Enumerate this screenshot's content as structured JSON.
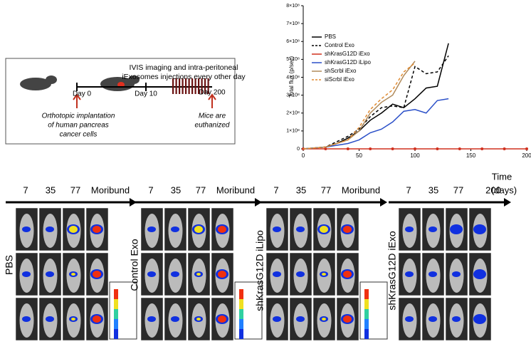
{
  "diagram": {
    "caption": [
      "IVIS imaging and intra-peritoneal",
      "iExosomes injections every other day"
    ],
    "days": [
      "Day 0",
      "Day 10",
      "Day 200"
    ],
    "note_left": [
      "Orthotopic implantation",
      "of human pancreas",
      "cancer cells"
    ],
    "note_right": [
      "Mice are",
      "euthanized"
    ]
  },
  "chart_data": {
    "type": "line",
    "y_label": "Total flux (p/sec)",
    "xlim": [
      0,
      200
    ],
    "xticks": [
      0,
      50,
      100,
      150,
      200
    ],
    "ylim": [
      0,
      800000000
    ],
    "yticks": [
      0,
      {
        "value": 100000000,
        "label": "1×10⁸"
      },
      {
        "value": 200000000,
        "label": "2×10⁸"
      },
      {
        "value": 300000000,
        "label": "3×10⁸"
      },
      {
        "value": 400000000,
        "label": "4×10⁸"
      },
      {
        "value": 500000000,
        "label": "5×10⁸"
      },
      {
        "value": 600000000,
        "label": "6×10⁸"
      },
      {
        "value": 700000000,
        "label": "7×10⁸"
      },
      {
        "value": 800000000,
        "label": "8×10⁸"
      }
    ],
    "series": [
      {
        "name": "PBS",
        "color": "#000000",
        "dashed": false,
        "x": [
          0,
          10,
          20,
          30,
          40,
          50,
          60,
          70,
          80,
          90,
          100,
          110,
          120,
          130
        ],
        "values": [
          0,
          5000000,
          10000000,
          30000000,
          60000000,
          100000000,
          160000000,
          200000000,
          250000000,
          230000000,
          280000000,
          340000000,
          350000000,
          590000000
        ]
      },
      {
        "name": "Control Exo",
        "color": "#000000",
        "dashed": true,
        "x": [
          0,
          10,
          20,
          30,
          40,
          50,
          60,
          70,
          80,
          90,
          100,
          110,
          120,
          130
        ],
        "values": [
          0,
          5000000,
          10000000,
          40000000,
          70000000,
          110000000,
          180000000,
          230000000,
          240000000,
          230000000,
          460000000,
          420000000,
          430000000,
          520000000
        ]
      },
      {
        "name": "shKrasG12D iExo",
        "color": "#d0301e",
        "dashed": false,
        "marker": true,
        "x": [
          0,
          20,
          40,
          60,
          80,
          100,
          120,
          140,
          160,
          180,
          200
        ],
        "values": [
          0,
          0,
          0,
          0,
          0,
          0,
          0,
          0,
          0,
          0,
          0
        ]
      },
      {
        "name": "shKrasG12D iLipo",
        "color": "#2a4fc8",
        "dashed": false,
        "x": [
          0,
          20,
          40,
          50,
          60,
          70,
          80,
          90,
          100,
          110,
          120,
          130
        ],
        "values": [
          0,
          10000000,
          30000000,
          50000000,
          90000000,
          110000000,
          150000000,
          210000000,
          220000000,
          200000000,
          270000000,
          280000000
        ]
      },
      {
        "name": "shScrbl iExo",
        "color": "#b08a5a",
        "dashed": false,
        "x": [
          0,
          20,
          40,
          50,
          60,
          70,
          80,
          90,
          100
        ],
        "values": [
          0,
          10000000,
          50000000,
          100000000,
          200000000,
          260000000,
          300000000,
          410000000,
          490000000
        ]
      },
      {
        "name": "siScrbl iExo",
        "color": "#e08a30",
        "dashed": true,
        "x": [
          0,
          20,
          40,
          50,
          60,
          70,
          80,
          90,
          100
        ],
        "values": [
          0,
          10000000,
          50000000,
          120000000,
          220000000,
          280000000,
          330000000,
          430000000,
          480000000
        ]
      }
    ]
  },
  "panels": {
    "time_axis_label": [
      "Time",
      "(days)"
    ],
    "groups": [
      {
        "label": "PBS",
        "times": [
          "7",
          "35",
          "77",
          "Moribund"
        ]
      },
      {
        "label": "Control Exo",
        "times": [
          "7",
          "35",
          "77",
          "Moribund"
        ]
      },
      {
        "label": "shKrasG12D iLipo",
        "times": [
          "7",
          "35",
          "77",
          "Moribund"
        ]
      },
      {
        "label": "shKrasG12D iExo",
        "times": [
          "7",
          "35",
          "77",
          "200"
        ]
      }
    ]
  }
}
